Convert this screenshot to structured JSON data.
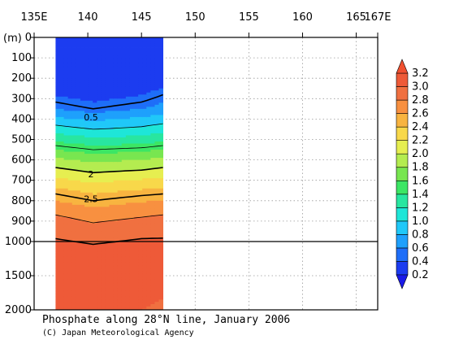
{
  "chart_data": {
    "type": "heatmap",
    "title": "Phosphate along 28°N line, January 2006",
    "credit": "(C) Japan Meteorological Agency",
    "ylabel": "(m)",
    "x_ticks": [
      "135E",
      "140",
      "145",
      "150",
      "155",
      "160",
      "165",
      "167E"
    ],
    "x_tick_values": [
      135,
      140,
      145,
      150,
      155,
      160,
      165,
      167
    ],
    "xlim": [
      135,
      167
    ],
    "data_xlim": [
      137,
      147
    ],
    "upper_y_ticks": [
      "0",
      "100",
      "200",
      "300",
      "400",
      "500",
      "600",
      "700",
      "800",
      "900",
      "1000"
    ],
    "upper_y_values": [
      0,
      100,
      200,
      300,
      400,
      500,
      600,
      700,
      800,
      900,
      1000
    ],
    "lower_y_ticks": [
      "1500",
      "2000"
    ],
    "lower_y_values": [
      1500,
      2000
    ],
    "ylim": [
      0,
      2000
    ],
    "scale_break_depth": 1000,
    "colorbar_ticks": [
      "0.2",
      "0.4",
      "0.6",
      "0.8",
      "1.0",
      "1.2",
      "1.4",
      "1.6",
      "1.8",
      "2.0",
      "2.2",
      "2.4",
      "2.6",
      "2.8",
      "3.0",
      "3.2"
    ],
    "colorbar_values": [
      0.2,
      0.4,
      0.6,
      0.8,
      1.0,
      1.2,
      1.4,
      1.6,
      1.8,
      2.0,
      2.2,
      2.4,
      2.6,
      2.8,
      3.0,
      3.2
    ],
    "colors": [
      "#1c3cf0",
      "#1e6ef8",
      "#1ea0fc",
      "#20c8f8",
      "#1ee6d8",
      "#28e6a0",
      "#3ce664",
      "#78e650",
      "#b4ec50",
      "#e6ee50",
      "#f8d84a",
      "#f8b440",
      "#f89040",
      "#f07040",
      "#ee5a38",
      "#f05030"
    ],
    "grid": "dotted",
    "contour_labels": [
      {
        "text": "0.5",
        "lon": 140.3,
        "depth": 390
      },
      {
        "text": "2",
        "lon": 140.3,
        "depth": 670
      },
      {
        "text": "2.5",
        "lon": 140.3,
        "depth": 790
      }
    ],
    "profile_lons": [
      137,
      140.5,
      145,
      147
    ],
    "profile_depths": [
      0,
      50,
      100,
      150,
      200,
      250,
      300,
      350,
      400,
      450,
      500,
      550,
      600,
      650,
      700,
      750,
      800,
      850,
      900,
      950,
      1000,
      1200,
      1500,
      2000
    ],
    "profiles": [
      [
        0.05,
        0.06,
        0.08,
        0.1,
        0.13,
        0.25,
        0.45,
        0.6,
        0.85,
        1.1,
        1.35,
        1.6,
        1.85,
        2.05,
        2.25,
        2.45,
        2.6,
        2.75,
        2.88,
        2.95,
        3.02,
        3.12,
        3.1,
        3.0
      ],
      [
        0.05,
        0.06,
        0.07,
        0.09,
        0.12,
        0.2,
        0.35,
        0.5,
        0.75,
        1.0,
        1.25,
        1.5,
        1.75,
        1.95,
        2.15,
        2.35,
        2.5,
        2.65,
        2.78,
        2.9,
        2.98,
        3.08,
        3.08,
        3.0
      ],
      [
        0.05,
        0.06,
        0.08,
        0.12,
        0.18,
        0.3,
        0.45,
        0.6,
        0.85,
        1.05,
        1.28,
        1.55,
        1.8,
        2.0,
        2.22,
        2.42,
        2.58,
        2.72,
        2.85,
        2.95,
        3.02,
        3.12,
        3.06,
        3.0
      ],
      [
        0.05,
        0.06,
        0.1,
        0.18,
        0.3,
        0.42,
        0.55,
        0.68,
        0.9,
        1.12,
        1.35,
        1.6,
        1.85,
        2.05,
        2.25,
        2.45,
        2.6,
        2.75,
        2.88,
        2.96,
        3.02,
        3.1,
        3.04,
        2.98
      ]
    ]
  }
}
